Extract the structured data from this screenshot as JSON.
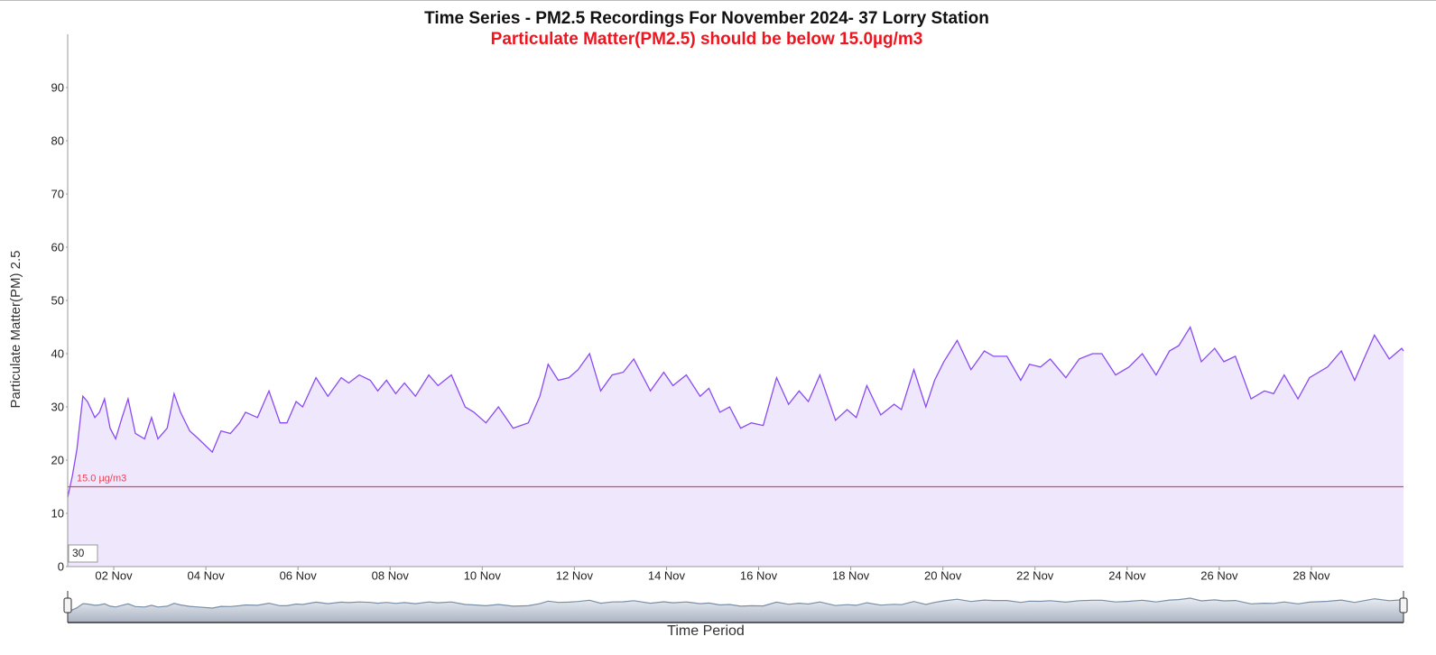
{
  "chart_data": {
    "type": "area",
    "title": "Time Series - PM2.5 Recordings For November 2024- 37 Lorry Station",
    "subtitle": "Particulate Matter(PM2.5) should be below 15.0µg/m3",
    "ylabel": "Particulate Matter(PM) 2.5",
    "xlabel": "Time Period",
    "zoom_box": "30",
    "line_color": "#8a4af3",
    "fill_color": "#efe8fd",
    "navigator_color": "#7a8fa8",
    "threshold": {
      "value": 15,
      "label": "15.0 µg/m3",
      "color": "#e0455a"
    },
    "xlim": [
      1,
      30
    ],
    "ylim": [
      0,
      100
    ],
    "xticks": [
      {
        "value": 2,
        "label": "02 Nov"
      },
      {
        "value": 4,
        "label": "04 Nov"
      },
      {
        "value": 6,
        "label": "06 Nov"
      },
      {
        "value": 8,
        "label": "08 Nov"
      },
      {
        "value": 10,
        "label": "10 Nov"
      },
      {
        "value": 12,
        "label": "12 Nov"
      },
      {
        "value": 14,
        "label": "14 Nov"
      },
      {
        "value": 16,
        "label": "16 Nov"
      },
      {
        "value": 18,
        "label": "18 Nov"
      },
      {
        "value": 20,
        "label": "20 Nov"
      },
      {
        "value": 22,
        "label": "22 Nov"
      },
      {
        "value": 24,
        "label": "24 Nov"
      },
      {
        "value": 26,
        "label": "26 Nov"
      },
      {
        "value": 28,
        "label": "28 Nov"
      }
    ],
    "yticks": [
      0,
      10,
      20,
      30,
      40,
      50,
      60,
      70,
      80,
      90
    ],
    "x": [
      1.0,
      1.1,
      1.2,
      1.33,
      1.43,
      1.59,
      1.69,
      1.8,
      1.92,
      2.04,
      2.18,
      2.31,
      2.47,
      2.67,
      2.82,
      2.96,
      3.16,
      3.31,
      3.45,
      3.65,
      3.84,
      4.14,
      4.33,
      4.53,
      4.73,
      4.86,
      5.12,
      5.37,
      5.61,
      5.76,
      5.96,
      6.1,
      6.39,
      6.65,
      6.94,
      7.1,
      7.33,
      7.57,
      7.73,
      7.92,
      8.12,
      8.31,
      8.55,
      8.84,
      9.04,
      9.33,
      9.63,
      9.82,
      10.08,
      10.35,
      10.67,
      11.0,
      11.25,
      11.43,
      11.65,
      11.88,
      12.08,
      12.33,
      12.57,
      12.82,
      13.06,
      13.29,
      13.65,
      13.94,
      14.14,
      14.43,
      14.73,
      14.92,
      15.16,
      15.37,
      15.61,
      15.84,
      16.1,
      16.39,
      16.65,
      16.88,
      17.08,
      17.33,
      17.67,
      17.92,
      18.12,
      18.35,
      18.65,
      18.94,
      19.1,
      19.37,
      19.63,
      19.82,
      20.02,
      20.31,
      20.61,
      20.9,
      21.1,
      21.39,
      21.69,
      21.88,
      22.12,
      22.33,
      22.67,
      22.96,
      23.25,
      23.45,
      23.75,
      24.04,
      24.33,
      24.63,
      24.92,
      25.12,
      25.37,
      25.61,
      25.9,
      26.1,
      26.35,
      26.69,
      26.98,
      27.18,
      27.41,
      27.71,
      27.96,
      28.35,
      28.65,
      28.94,
      29.14,
      29.37,
      29.69,
      29.96,
      30.0
    ],
    "values": [
      13,
      17,
      22,
      32,
      31,
      28,
      29,
      31.5,
      26,
      24,
      28,
      31.5,
      25,
      24,
      28,
      24,
      26,
      32.5,
      29,
      25.5,
      24,
      21.5,
      25.5,
      25,
      27,
      29,
      28,
      33,
      27,
      27,
      31,
      30,
      35.5,
      32,
      35.5,
      34.5,
      36,
      35,
      33,
      35,
      32.5,
      34.5,
      32,
      36,
      34,
      36,
      30,
      29,
      27,
      30,
      26,
      27,
      32,
      38,
      35,
      35.5,
      37,
      40,
      33,
      36,
      36.5,
      39,
      33,
      36.5,
      34,
      36,
      32,
      33.5,
      29,
      30,
      26,
      27,
      26.5,
      35.5,
      30.5,
      33,
      31,
      36,
      27.5,
      29.5,
      28,
      34,
      28.5,
      30.5,
      29.5,
      37,
      30,
      35,
      38.5,
      42.5,
      37,
      40.5,
      39.5,
      39.5,
      35,
      38,
      37.5,
      39,
      35.5,
      39,
      40,
      40,
      36,
      37.5,
      40,
      36,
      40.5,
      41.5,
      45,
      38.5,
      41,
      38.5,
      39.5,
      31.5,
      33,
      32.5,
      36,
      31.5,
      35.5,
      37.5,
      40.5,
      35,
      39,
      43.5,
      39,
      41,
      40.5
    ]
  }
}
